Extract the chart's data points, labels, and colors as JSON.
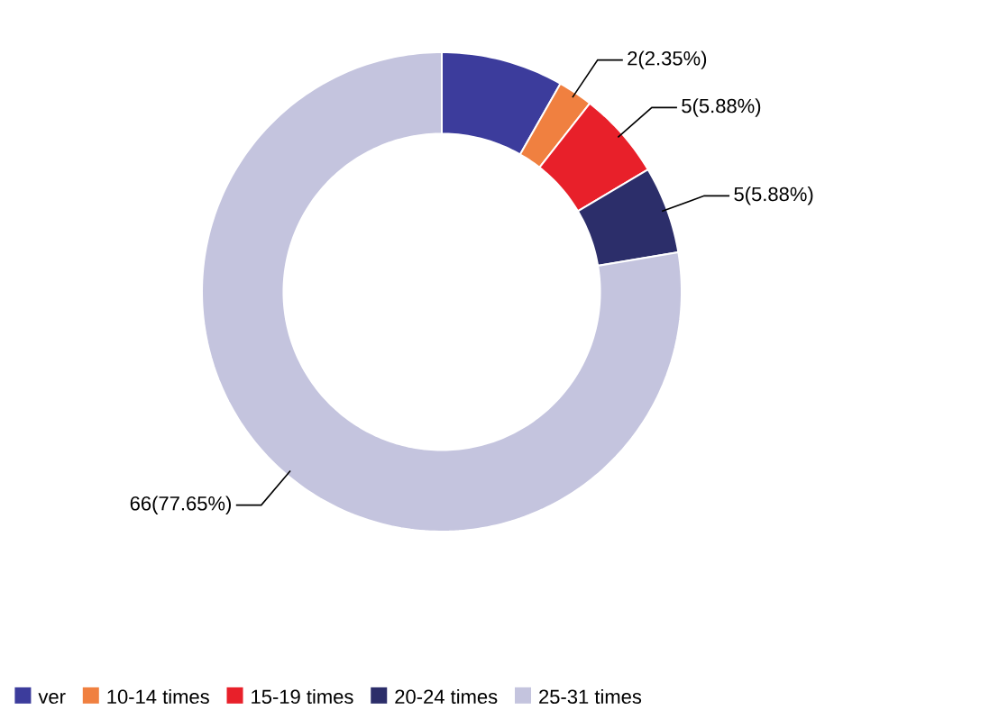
{
  "chart_data": {
    "type": "donut",
    "categories": [
      "ver",
      "10-14 times",
      "15-19 times",
      "20-24 times",
      "25-31 times"
    ],
    "values": [
      7,
      2,
      5,
      5,
      66
    ],
    "colors": [
      "#3c3c9c",
      "#f08040",
      "#e8202a",
      "#2c2e6a",
      "#c4c4de"
    ],
    "value_labels": [
      null,
      "2(2.35%)",
      "5(5.88%)",
      "5(5.88%)",
      "66(77.65%)"
    ],
    "legend": "bottom"
  }
}
